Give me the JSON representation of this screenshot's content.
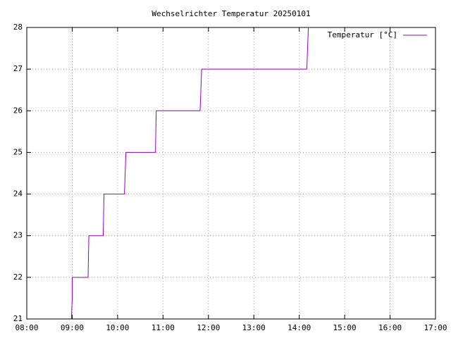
{
  "chart_data": {
    "type": "line",
    "title": "Wechselrichter Temperatur 20250101",
    "x": [
      "08:59",
      "09:00",
      "09:00",
      "09:21",
      "09:22",
      "09:41",
      "09:42",
      "10:09",
      "10:11",
      "10:50",
      "10:51",
      "11:49",
      "11:51",
      "14:10",
      "14:12",
      "14:13"
    ],
    "series": [
      {
        "name": "Temperatur [°C]",
        "color": "#9400d3",
        "values": [
          21,
          21.5,
          22,
          22,
          23,
          23,
          24,
          24,
          25,
          25,
          26,
          26,
          27,
          27,
          28,
          28
        ]
      }
    ],
    "xlim": [
      "08:00",
      "17:00"
    ],
    "xticks": [
      "08:00",
      "09:00",
      "10:00",
      "11:00",
      "12:00",
      "13:00",
      "14:00",
      "15:00",
      "16:00",
      "17:00"
    ],
    "ylim": [
      21,
      28
    ],
    "yticks": [
      21,
      22,
      23,
      24,
      25,
      26,
      27,
      28
    ],
    "grid": true,
    "legend": "top-right"
  }
}
